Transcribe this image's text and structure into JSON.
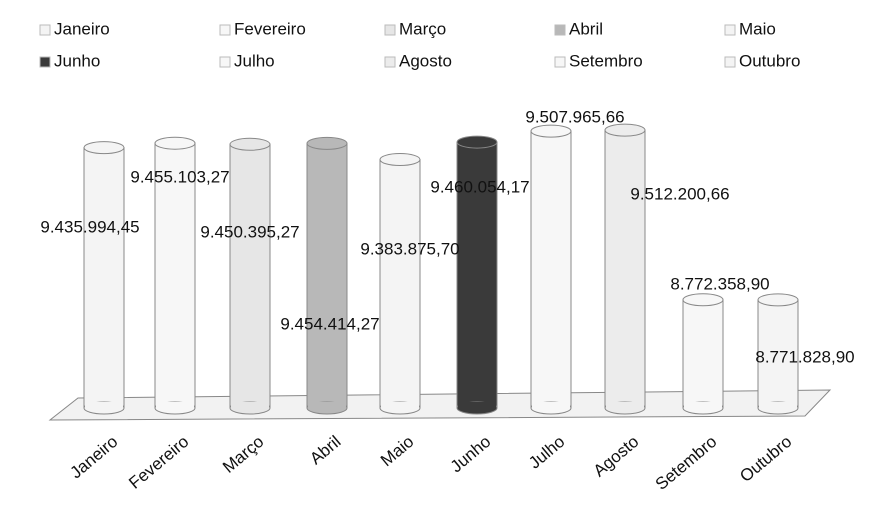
{
  "chart_data": {
    "type": "bar",
    "categories": [
      "Janeiro",
      "Fevereiro",
      "Março",
      "Abril",
      "Maio",
      "Junho",
      "Julho",
      "Agosto",
      "Setembro",
      "Outubro"
    ],
    "values": [
      9435994.45,
      9455103.27,
      9450395.27,
      9454414.27,
      9383875.7,
      9460054.17,
      9507965.66,
      9512200.66,
      8772358.9,
      8771828.9
    ],
    "value_labels": [
      "9.435.994,45",
      "9.455.103,27",
      "9.450.395,27",
      "9.454.414,27",
      "9.383.875,70",
      "9.460.054,17",
      "9.507.965,66",
      "9.512.200,66",
      "8.772.358,90",
      "8.771.828,90"
    ],
    "colors": [
      "#f4f4f4",
      "#f7f7f7",
      "#e6e6e6",
      "#b8b8b8",
      "#f4f4f4",
      "#3a3a3a",
      "#f7f7f7",
      "#ececec",
      "#f7f7f7",
      "#f4f4f4"
    ],
    "ylim": [
      8300000,
      9600000
    ]
  }
}
